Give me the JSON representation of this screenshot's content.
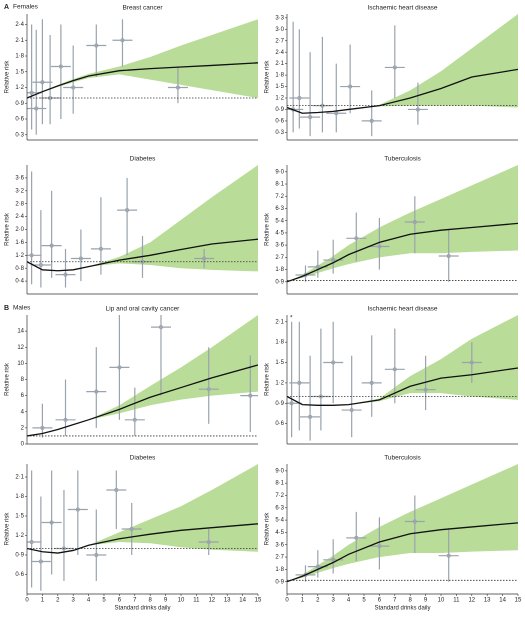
{
  "panel_groups": [
    {
      "letter": "A",
      "label": "Females"
    },
    {
      "letter": "B",
      "label": "Males"
    }
  ],
  "note": "*",
  "chart_data": [
    {
      "type": "line",
      "title": "Breast cancer",
      "ylabel": "Relative risk",
      "xlim": [
        0,
        15
      ],
      "ylim": [
        0.2,
        2.6
      ],
      "yticks": [
        {
          "value": 0.3,
          "label": "0·3"
        },
        {
          "value": 0.6,
          "label": "0·6"
        },
        {
          "value": 0.9,
          "label": "0·9"
        },
        {
          "value": 1.2,
          "label": "1·2"
        },
        {
          "value": 1.5,
          "label": "1·5"
        },
        {
          "value": 1.8,
          "label": "1·8"
        },
        {
          "value": 2.1,
          "label": "2·1"
        },
        {
          "value": 2.4,
          "label": "2·4"
        }
      ],
      "reference": 1,
      "line_color": "#111111",
      "band_color": "#b9dc98",
      "point_color": "#9aa3ad",
      "x": [
        0,
        1,
        2,
        3,
        4,
        6,
        8,
        10,
        12,
        15
      ],
      "values": [
        1.0,
        1.12,
        1.23,
        1.33,
        1.42,
        1.52,
        1.56,
        1.59,
        1.62,
        1.67
      ],
      "band_lower": [
        1.0,
        1.11,
        1.21,
        1.3,
        1.38,
        1.45,
        1.35,
        1.25,
        1.15,
        1.0
      ],
      "band_upper": [
        1.0,
        1.13,
        1.25,
        1.36,
        1.46,
        1.6,
        1.78,
        2.0,
        2.2,
        2.5
      ],
      "points": {
        "x": [
          0.3,
          0.6,
          1.0,
          1.5,
          2.2,
          3.0,
          4.5,
          6.2,
          9.8
        ],
        "y": [
          1.1,
          0.8,
          1.3,
          1.0,
          1.6,
          1.2,
          2.0,
          2.1,
          1.2
        ],
        "ylo": [
          0.4,
          0.3,
          0.5,
          0.5,
          0.6,
          0.7,
          1.4,
          1.6,
          0.9
        ],
        "yhi": [
          2.4,
          2.3,
          2.5,
          2.2,
          2.4,
          2.0,
          2.4,
          2.5,
          1.6
        ]
      }
    },
    {
      "type": "line",
      "title": "Ischaemic heart disease",
      "ylabel": "Relative risk",
      "xlim": [
        0,
        15
      ],
      "ylim": [
        0.1,
        3.4
      ],
      "yticks": [
        {
          "value": 0.3,
          "label": "0·3"
        },
        {
          "value": 0.6,
          "label": "0·6"
        },
        {
          "value": 0.9,
          "label": "0·9"
        },
        {
          "value": 1.2,
          "label": "1·2"
        },
        {
          "value": 1.5,
          "label": "1·5"
        },
        {
          "value": 1.8,
          "label": "1·8"
        },
        {
          "value": 2.1,
          "label": "2·1"
        },
        {
          "value": 2.4,
          "label": "2·4"
        },
        {
          "value": 2.7,
          "label": "2·7"
        },
        {
          "value": 3.0,
          "label": "3·0"
        },
        {
          "value": 3.3,
          "label": "3·3"
        }
      ],
      "reference": 1,
      "line_color": "#111111",
      "band_color": "#b9dc98",
      "point_color": "#9aa3ad",
      "x": [
        0,
        1,
        2,
        3,
        4,
        6,
        8,
        10,
        12,
        15
      ],
      "values": [
        0.95,
        0.8,
        0.82,
        0.85,
        0.9,
        1.0,
        1.2,
        1.45,
        1.75,
        1.95
      ],
      "band_lower": [
        0.95,
        0.8,
        0.82,
        0.85,
        0.9,
        0.98,
        1.0,
        1.0,
        1.0,
        0.95
      ],
      "band_upper": [
        0.95,
        0.8,
        0.82,
        0.85,
        0.9,
        1.02,
        1.4,
        1.9,
        2.5,
        3.4
      ],
      "points": {
        "x": [
          0.4,
          0.8,
          1.5,
          2.3,
          3.2,
          4.1,
          5.5,
          7.0,
          8.5
        ],
        "y": [
          0.9,
          1.2,
          0.7,
          1.0,
          0.8,
          1.5,
          0.6,
          2.0,
          0.9
        ],
        "ylo": [
          0.3,
          0.4,
          0.2,
          0.3,
          0.3,
          0.8,
          0.2,
          1.2,
          0.5
        ],
        "yhi": [
          3.2,
          3.0,
          2.4,
          2.8,
          2.1,
          2.6,
          1.4,
          3.1,
          1.6
        ]
      }
    },
    {
      "type": "line",
      "title": "Diabetes",
      "ylabel": "Relative risk",
      "xlim": [
        0,
        15
      ],
      "ylim": [
        0,
        4
      ],
      "yticks": [
        {
          "value": 0.4,
          "label": "0·4"
        },
        {
          "value": 0.8,
          "label": "0·8"
        },
        {
          "value": 1.2,
          "label": "1·2"
        },
        {
          "value": 1.6,
          "label": "1·6"
        },
        {
          "value": 2.0,
          "label": "2·0"
        },
        {
          "value": 2.4,
          "label": "2·4"
        },
        {
          "value": 2.8,
          "label": "2·8"
        },
        {
          "value": 3.2,
          "label": "3·2"
        },
        {
          "value": 3.6,
          "label": "3·6"
        }
      ],
      "reference": 1,
      "line_color": "#111111",
      "band_color": "#b9dc98",
      "point_color": "#9aa3ad",
      "x": [
        0,
        1,
        2,
        3,
        4,
        6,
        8,
        10,
        12,
        15
      ],
      "values": [
        1.0,
        0.75,
        0.72,
        0.75,
        0.85,
        1.05,
        1.2,
        1.38,
        1.55,
        1.7
      ],
      "band_lower": [
        1.0,
        0.75,
        0.72,
        0.75,
        0.85,
        0.95,
        0.9,
        0.8,
        0.75,
        0.7
      ],
      "band_upper": [
        1.0,
        0.75,
        0.72,
        0.75,
        0.85,
        1.15,
        1.6,
        2.3,
        3.0,
        4.0
      ],
      "points": {
        "x": [
          0.3,
          0.9,
          1.6,
          2.5,
          3.5,
          4.8,
          6.5,
          7.5,
          11.5
        ],
        "y": [
          1.2,
          0.9,
          1.5,
          0.6,
          1.1,
          1.4,
          2.6,
          1.0,
          1.1
        ],
        "ylo": [
          0.3,
          0.2,
          0.5,
          0.2,
          0.4,
          0.6,
          1.2,
          0.5,
          0.8
        ],
        "yhi": [
          3.8,
          2.6,
          3.2,
          1.4,
          2.0,
          3.0,
          3.6,
          1.8,
          1.4
        ]
      }
    },
    {
      "type": "line",
      "title": "Tuberculosis",
      "ylabel": "Relative risk",
      "xlim": [
        0,
        15
      ],
      "ylim": [
        0,
        9.5
      ],
      "yticks": [
        {
          "value": 0.9,
          "label": "0·9"
        },
        {
          "value": 1.8,
          "label": "1·8"
        },
        {
          "value": 2.7,
          "label": "2·7"
        },
        {
          "value": 3.6,
          "label": "3·6"
        },
        {
          "value": 4.5,
          "label": "4·5"
        },
        {
          "value": 5.4,
          "label": "5·4"
        },
        {
          "value": 6.3,
          "label": "6·3"
        },
        {
          "value": 7.2,
          "label": "7·2"
        },
        {
          "value": 8.1,
          "label": "8·1"
        },
        {
          "value": 9.0,
          "label": "9·0"
        }
      ],
      "reference": 1,
      "line_color": "#111111",
      "band_color": "#b9dc98",
      "point_color": "#9aa3ad",
      "x": [
        0,
        1,
        2,
        3,
        4,
        6,
        8,
        10,
        12,
        15
      ],
      "values": [
        0.9,
        1.3,
        1.8,
        2.3,
        2.9,
        3.8,
        4.4,
        4.7,
        4.9,
        5.2
      ],
      "band_lower": [
        0.9,
        1.2,
        1.55,
        1.9,
        2.2,
        2.7,
        3.0,
        3.0,
        3.1,
        3.2
      ],
      "band_upper": [
        0.9,
        1.4,
        2.1,
        2.8,
        3.6,
        4.9,
        6.0,
        7.0,
        8.0,
        9.5
      ],
      "points": {
        "x": [
          1.2,
          2.0,
          3.0,
          4.5,
          6.0,
          8.3,
          10.5
        ],
        "y": [
          1.4,
          2.0,
          2.5,
          4.1,
          3.5,
          5.3,
          2.8
        ],
        "ylo": [
          0.9,
          1.2,
          1.5,
          2.4,
          1.8,
          3.0,
          0.9
        ],
        "yhi": [
          2.1,
          3.2,
          4.0,
          6.0,
          5.6,
          7.2,
          4.8
        ]
      }
    },
    {
      "type": "line",
      "title": "Lip and oral cavity cancer",
      "ylabel": "Relative risk",
      "xlim": [
        0,
        15
      ],
      "ylim": [
        0,
        16
      ],
      "yticks": [
        0,
        2,
        4,
        6,
        8,
        10,
        12,
        14
      ],
      "reference": 1,
      "line_color": "#111111",
      "band_color": "#b9dc98",
      "point_color": "#9aa3ad",
      "x": [
        0,
        1,
        2,
        3,
        4,
        6,
        8,
        10,
        12,
        15
      ],
      "values": [
        1.0,
        1.3,
        1.8,
        2.4,
        3.0,
        4.3,
        5.8,
        7.0,
        8.2,
        9.8
      ],
      "band_lower": [
        1.0,
        1.3,
        1.8,
        2.4,
        3.0,
        3.8,
        4.8,
        5.5,
        6.0,
        6.5
      ],
      "band_upper": [
        1.0,
        1.3,
        1.8,
        2.4,
        3.0,
        4.8,
        7.2,
        9.5,
        12,
        16
      ],
      "points": {
        "x": [
          1.0,
          2.5,
          4.5,
          6.0,
          7.0,
          8.7,
          11.8,
          14.5
        ],
        "y": [
          2.0,
          3.0,
          6.5,
          9.5,
          3.0,
          14.5,
          6.8,
          6.0
        ],
        "ylo": [
          0.8,
          1.0,
          2.0,
          3.0,
          1.0,
          6.0,
          2.5,
          1.5
        ],
        "yhi": [
          5.0,
          8.0,
          12.0,
          16.0,
          7.0,
          16.0,
          12.0,
          11.0
        ]
      }
    },
    {
      "type": "line",
      "title": "Ischaemic heart disease",
      "ylabel": "Relative risk",
      "xlim": [
        0,
        15
      ],
      "ylim": [
        0.3,
        2.2
      ],
      "yticks": [
        {
          "value": 0.6,
          "label": "0·6"
        },
        {
          "value": 0.9,
          "label": "0·9"
        },
        {
          "value": 1.2,
          "label": "1·2"
        },
        {
          "value": 1.5,
          "label": "1·5"
        },
        {
          "value": 1.8,
          "label": "1·8"
        },
        {
          "value": 2.1,
          "label": "2·1"
        }
      ],
      "reference": 1,
      "line_color": "#111111",
      "band_color": "#b9dc98",
      "point_color": "#9aa3ad",
      "x": [
        0,
        1,
        2,
        3,
        4,
        6,
        8,
        10,
        12,
        15
      ],
      "values": [
        1.0,
        0.88,
        0.87,
        0.87,
        0.88,
        0.95,
        1.15,
        1.27,
        1.32,
        1.42
      ],
      "band_lower": [
        1.0,
        0.88,
        0.87,
        0.87,
        0.88,
        0.93,
        1.05,
        1.05,
        1.0,
        0.95
      ],
      "band_upper": [
        1.0,
        0.88,
        0.87,
        0.87,
        0.88,
        0.97,
        1.3,
        1.55,
        1.85,
        2.2
      ],
      "points": {
        "x": [
          0.3,
          0.8,
          1.5,
          2.2,
          3.0,
          4.2,
          5.5,
          7.0,
          9.0,
          12.0
        ],
        "y": [
          0.9,
          1.2,
          0.7,
          1.0,
          1.5,
          0.8,
          1.2,
          1.4,
          1.1,
          1.5
        ],
        "ylo": [
          0.4,
          0.5,
          0.35,
          0.5,
          0.9,
          0.4,
          0.7,
          0.9,
          0.8,
          1.2
        ],
        "yhi": [
          2.1,
          2.1,
          1.6,
          2.0,
          2.1,
          1.6,
          1.9,
          2.0,
          1.6,
          1.8
        ]
      }
    },
    {
      "type": "line",
      "title": "Diabetes",
      "ylabel": "Relative risk",
      "xlim": [
        0,
        15
      ],
      "ylim": [
        0.3,
        2.3
      ],
      "yticks": [
        {
          "value": 0.6,
          "label": "0·6"
        },
        {
          "value": 0.9,
          "label": "0·9"
        },
        {
          "value": 1.2,
          "label": "1·2"
        },
        {
          "value": 1.5,
          "label": "1·5"
        },
        {
          "value": 1.8,
          "label": "1·8"
        },
        {
          "value": 2.1,
          "label": "2·1"
        }
      ],
      "reference": 1,
      "line_color": "#111111",
      "band_color": "#b9dc98",
      "point_color": "#9aa3ad",
      "x": [
        0,
        1,
        2,
        3,
        4,
        6,
        8,
        10,
        12,
        15
      ],
      "values": [
        1.0,
        0.95,
        0.93,
        0.97,
        1.05,
        1.15,
        1.22,
        1.28,
        1.32,
        1.38
      ],
      "band_lower": [
        1.0,
        0.95,
        0.93,
        0.97,
        1.05,
        1.1,
        1.08,
        1.02,
        0.98,
        0.95
      ],
      "band_upper": [
        1.0,
        0.95,
        0.93,
        0.97,
        1.05,
        1.25,
        1.45,
        1.65,
        1.9,
        2.3
      ],
      "points": {
        "x": [
          0.3,
          0.9,
          1.6,
          2.4,
          3.3,
          4.5,
          5.8,
          6.8,
          11.8
        ],
        "y": [
          1.1,
          0.8,
          1.4,
          1.0,
          1.6,
          0.9,
          1.9,
          1.3,
          1.1
        ],
        "ylo": [
          0.4,
          0.35,
          0.6,
          0.5,
          0.9,
          0.5,
          1.3,
          0.9,
          0.9
        ],
        "yhi": [
          2.2,
          1.8,
          2.2,
          1.9,
          2.2,
          1.6,
          2.2,
          1.7,
          1.3
        ]
      }
    },
    {
      "type": "line",
      "title": "Tuberculosis",
      "ylabel": "Relative risk",
      "xlabel": "Standard drinks daily",
      "xlim": [
        0,
        15
      ],
      "ylim": [
        0,
        9.5
      ],
      "xticks": [
        0,
        1,
        2,
        3,
        4,
        5,
        6,
        7,
        8,
        9,
        10,
        11,
        12,
        13,
        14,
        15
      ],
      "yticks": [
        {
          "value": 0.9,
          "label": "0·9"
        },
        {
          "value": 1.8,
          "label": "1·8"
        },
        {
          "value": 2.7,
          "label": "2·7"
        },
        {
          "value": 3.6,
          "label": "3·6"
        },
        {
          "value": 4.5,
          "label": "4·5"
        },
        {
          "value": 5.4,
          "label": "5·4"
        },
        {
          "value": 6.3,
          "label": "6·3"
        },
        {
          "value": 7.2,
          "label": "7·2"
        },
        {
          "value": 8.1,
          "label": "8·1"
        },
        {
          "value": 9.0,
          "label": "9·0"
        }
      ],
      "reference": 1,
      "line_color": "#111111",
      "band_color": "#b9dc98",
      "point_color": "#9aa3ad",
      "x": [
        0,
        1,
        2,
        3,
        4,
        6,
        8,
        10,
        12,
        15
      ],
      "values": [
        0.9,
        1.3,
        1.8,
        2.3,
        2.9,
        3.8,
        4.4,
        4.7,
        4.9,
        5.2
      ],
      "band_lower": [
        0.9,
        1.2,
        1.55,
        1.9,
        2.2,
        2.7,
        3.0,
        3.0,
        3.1,
        3.2
      ],
      "band_upper": [
        0.9,
        1.4,
        2.1,
        2.8,
        3.6,
        4.9,
        6.0,
        7.0,
        8.0,
        9.5
      ],
      "points": {
        "x": [
          1.2,
          2.0,
          3.0,
          4.5,
          6.0,
          8.3,
          10.5
        ],
        "y": [
          1.4,
          2.0,
          2.5,
          4.1,
          3.5,
          5.3,
          2.8
        ],
        "ylo": [
          0.9,
          1.2,
          1.5,
          2.4,
          1.8,
          3.0,
          0.9
        ],
        "yhi": [
          2.1,
          3.2,
          4.0,
          6.0,
          5.6,
          7.2,
          4.8
        ]
      }
    }
  ]
}
